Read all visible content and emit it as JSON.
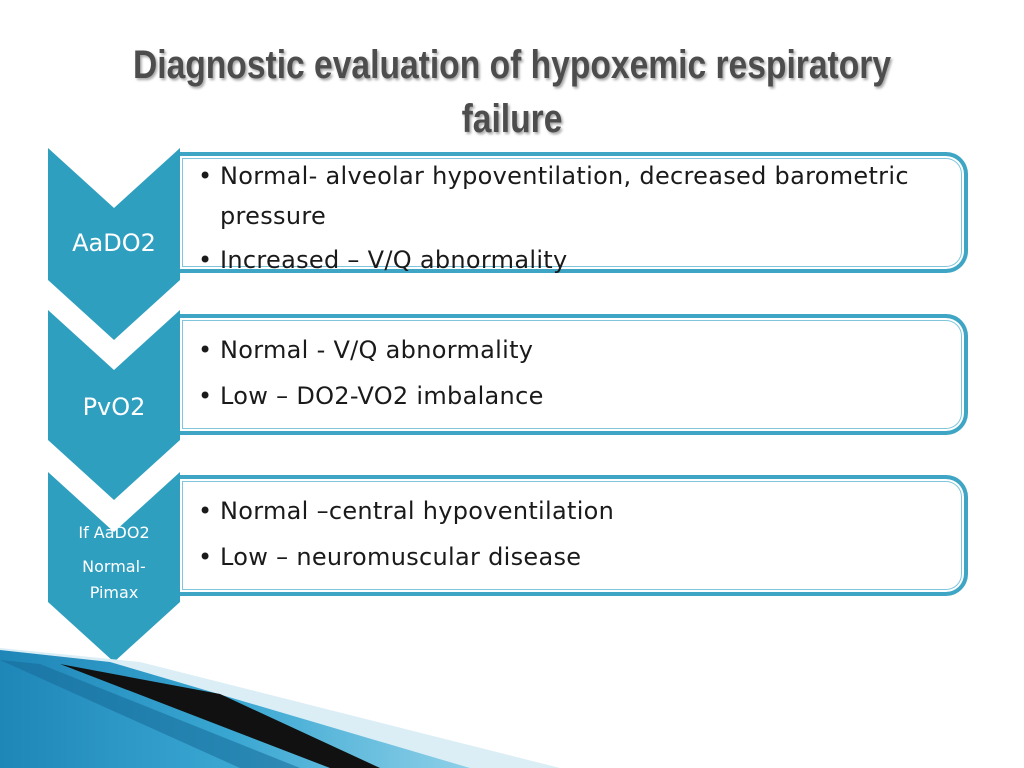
{
  "slide": {
    "title": "Diagnostic evaluation of hypoxemic respiratory failure",
    "accent_color": "#2f9fc0"
  },
  "rows": [
    {
      "label": "AaDO2",
      "bullets": [
        "Normal- alveolar hypoventilation, decreased barometric pressure",
        "Increased – V/Q abnormality"
      ]
    },
    {
      "label": "PvO2",
      "bullets": [
        "Normal - V/Q abnormality",
        "Low – DO2-VO2 imbalance"
      ]
    },
    {
      "label_lines": [
        "If AaDO2",
        "Normal-",
        "Pimax"
      ],
      "bullets": [
        "Normal –central hypoventilation",
        "Low – neuromuscular disease"
      ]
    }
  ]
}
